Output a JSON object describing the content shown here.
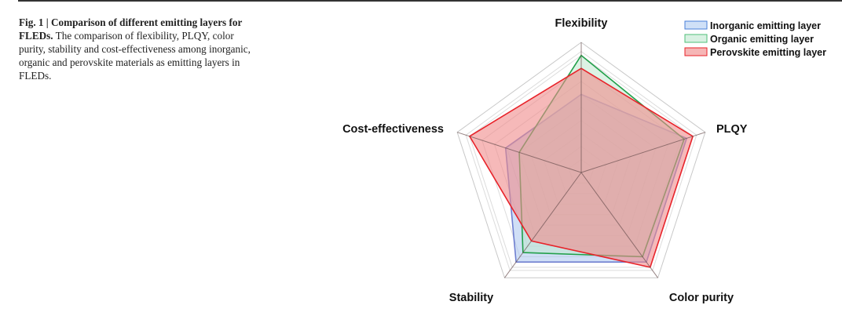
{
  "caption": {
    "bold": "Fig. 1 | Comparison of different emitting layers for FLEDs.",
    "text": " The comparison of flexibility, PLQY, color purity, stability and cost-effectiveness among inorganic, organic and perovskite materials as emitting layers in FLEDs."
  },
  "chart_data": {
    "type": "radar",
    "title": "",
    "axes": [
      "Flexibility",
      "PLQY",
      "Color purity",
      "Stability",
      "Cost-effectiveness"
    ],
    "range": [
      0,
      1
    ],
    "grid_rings": 10,
    "legend_position": "top-right",
    "series": [
      {
        "name": "Inorganic emitting layer",
        "values": [
          0.6,
          0.85,
          0.85,
          0.85,
          0.61
        ],
        "stroke": "#6f7fd0",
        "fill": "#a9c4ef"
      },
      {
        "name": "Organic emitting layer",
        "values": [
          0.9,
          0.83,
          0.8,
          0.76,
          0.5
        ],
        "stroke": "#22a04a",
        "fill": "#bfe8cd"
      },
      {
        "name": "Perovskite emitting layer",
        "values": [
          0.8,
          0.9,
          0.9,
          0.65,
          0.9
        ],
        "stroke": "#e8232a",
        "fill": "#f08a8a"
      }
    ],
    "legend_stroke_colors": [
      "#4a7fd8",
      "#4fbf78",
      "#e8232a"
    ]
  }
}
